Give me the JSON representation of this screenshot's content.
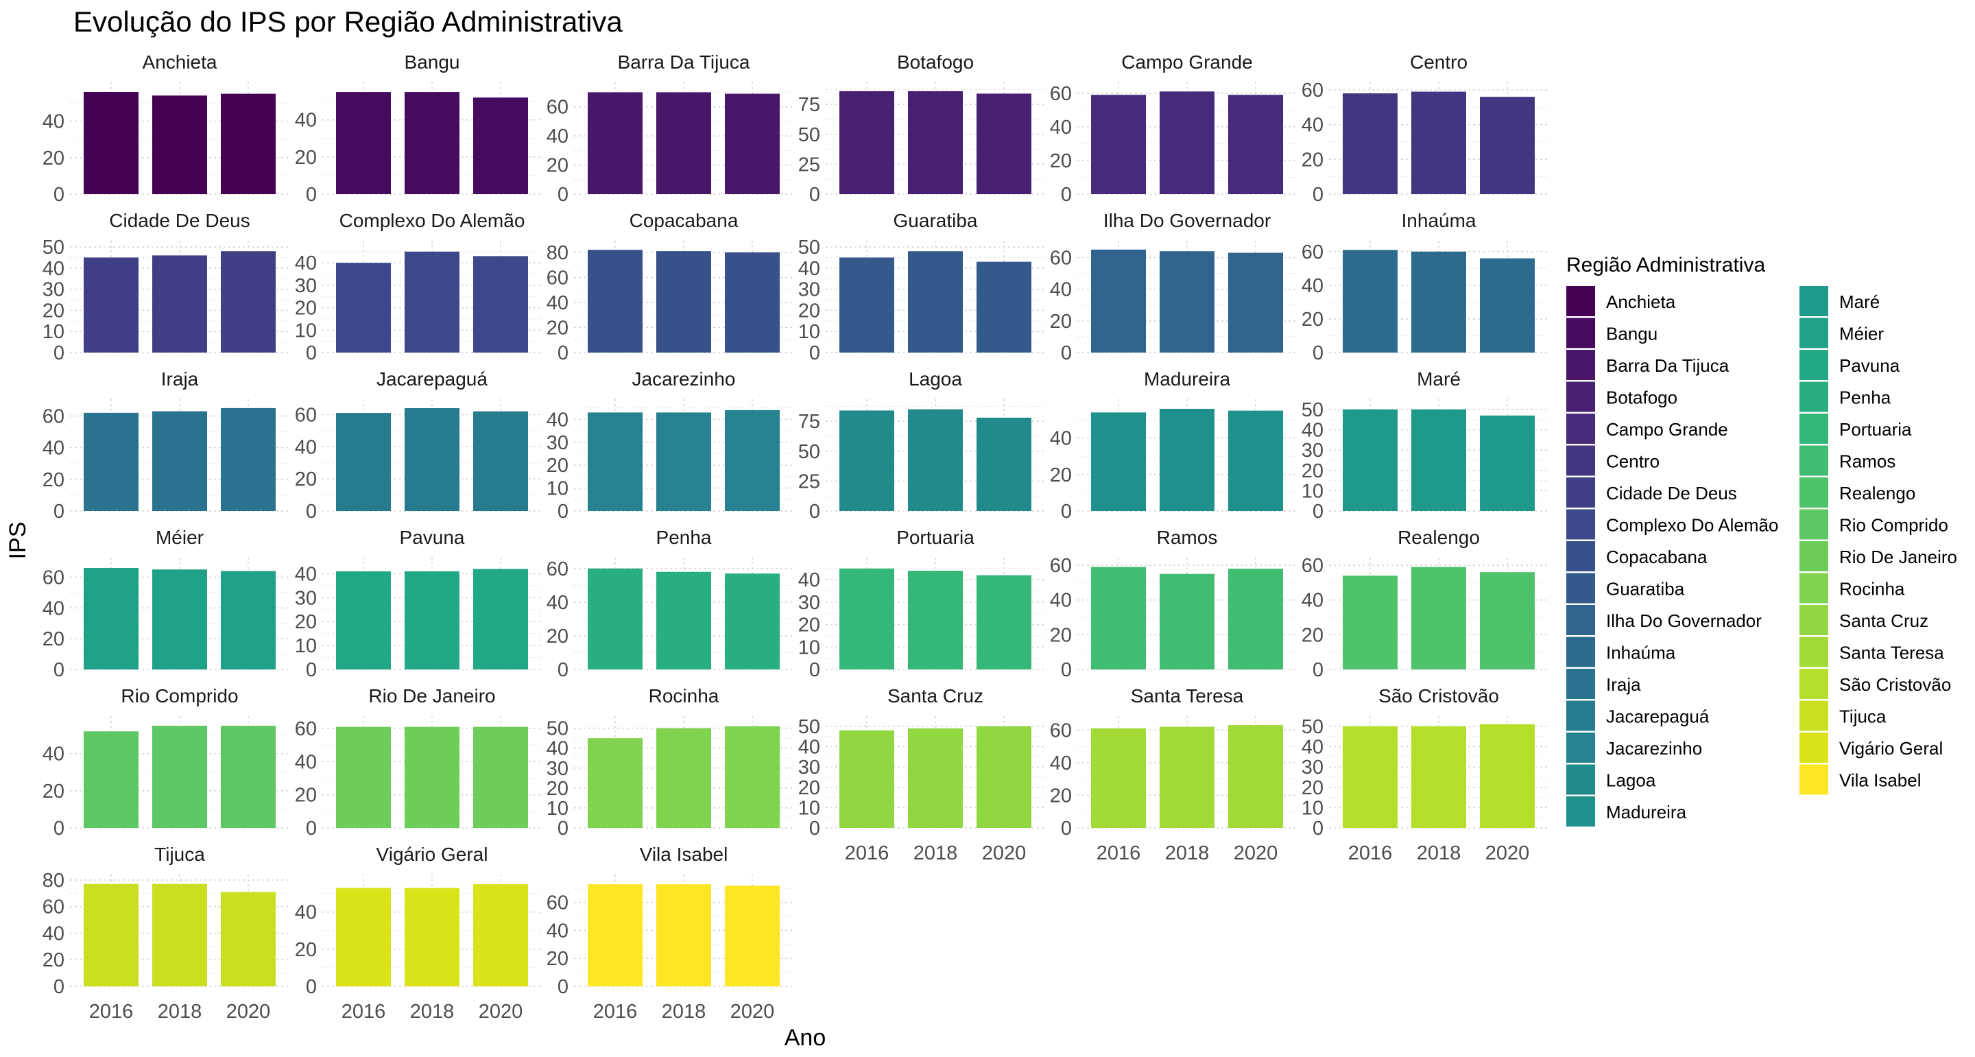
{
  "chart_data": {
    "type": "bar",
    "title": "Evolução do IPS por Região Administrativa",
    "xlabel": "Ano",
    "ylabel": "IPS",
    "categories": [
      "2016",
      "2018",
      "2020"
    ],
    "legend": {
      "title": "Região Administrativa",
      "placement": "right"
    },
    "grid": true,
    "panels": [
      {
        "name": "Anchieta",
        "values": [
          56,
          54,
          55
        ],
        "yticks": [
          0,
          20,
          40
        ],
        "ylim": [
          0,
          59
        ],
        "color": "#440154"
      },
      {
        "name": "Bangu",
        "values": [
          55,
          55,
          52
        ],
        "yticks": [
          0,
          20,
          40
        ],
        "ylim": [
          0,
          58
        ],
        "color": "#460B5E"
      },
      {
        "name": "Barra Da Tijuca",
        "values": [
          70,
          70,
          69
        ],
        "yticks": [
          0,
          20,
          40,
          60
        ],
        "ylim": [
          0,
          74
        ],
        "color": "#481769"
      },
      {
        "name": "Botafogo",
        "values": [
          86,
          86,
          84
        ],
        "yticks": [
          0,
          25,
          50,
          75
        ],
        "ylim": [
          0,
          90
        ],
        "color": "#472072"
      },
      {
        "name": "Campo Grande",
        "values": [
          59,
          61,
          59
        ],
        "yticks": [
          0,
          20,
          40,
          60
        ],
        "ylim": [
          0,
          64
        ],
        "color": "#462B7A"
      },
      {
        "name": "Centro",
        "values": [
          58,
          59,
          56
        ],
        "yticks": [
          0,
          20,
          40,
          60
        ],
        "ylim": [
          0,
          62
        ],
        "color": "#433580"
      },
      {
        "name": "Cidade De Deus",
        "values": [
          45,
          46,
          48
        ],
        "yticks": [
          0,
          10,
          20,
          30,
          40,
          50
        ],
        "ylim": [
          0,
          51
        ],
        "color": "#403E85"
      },
      {
        "name": "Complexo Do Alemão",
        "values": [
          40,
          45,
          43
        ],
        "yticks": [
          0,
          10,
          20,
          30,
          40
        ],
        "ylim": [
          0,
          48
        ],
        "color": "#3C4889"
      },
      {
        "name": "Copacabana",
        "values": [
          82,
          81,
          80
        ],
        "yticks": [
          0,
          20,
          40,
          60,
          80
        ],
        "ylim": [
          0,
          86
        ],
        "color": "#38518B"
      },
      {
        "name": "Guaratiba",
        "values": [
          45,
          48,
          43
        ],
        "yticks": [
          0,
          10,
          20,
          30,
          40,
          50
        ],
        "ylim": [
          0,
          51
        ],
        "color": "#345A8C"
      },
      {
        "name": "Ilha Do Governador",
        "values": [
          65,
          64,
          63
        ],
        "yticks": [
          0,
          20,
          40,
          60
        ],
        "ylim": [
          0,
          68
        ],
        "color": "#30638D"
      },
      {
        "name": "Inhaúma",
        "values": [
          61,
          60,
          56
        ],
        "yticks": [
          0,
          20,
          40,
          60
        ],
        "ylim": [
          0,
          64
        ],
        "color": "#2D6B8E"
      },
      {
        "name": "Iraja",
        "values": [
          62,
          63,
          65
        ],
        "yticks": [
          0,
          20,
          40,
          60
        ],
        "ylim": [
          0,
          68
        ],
        "color": "#2A738E"
      },
      {
        "name": "Jacarepaguá",
        "values": [
          61,
          64,
          62
        ],
        "yticks": [
          0,
          20,
          40,
          60
        ],
        "ylim": [
          0,
          67
        ],
        "color": "#277B8E"
      },
      {
        "name": "Jacarezinho",
        "values": [
          43,
          43,
          44
        ],
        "yticks": [
          0,
          10,
          20,
          30,
          40
        ],
        "ylim": [
          0,
          47
        ],
        "color": "#25828E"
      },
      {
        "name": "Lagoa",
        "values": [
          84,
          85,
          78
        ],
        "yticks": [
          0,
          25,
          50,
          75
        ],
        "ylim": [
          0,
          90
        ],
        "color": "#228A8D"
      },
      {
        "name": "Madureira",
        "values": [
          54,
          56,
          55
        ],
        "yticks": [
          0,
          20,
          40
        ],
        "ylim": [
          0,
          59
        ],
        "color": "#1F918C"
      },
      {
        "name": "Maré",
        "values": [
          50,
          50,
          47
        ],
        "yticks": [
          0,
          10,
          20,
          30,
          40,
          50
        ],
        "ylim": [
          0,
          53
        ],
        "color": "#1F998A"
      },
      {
        "name": "Méier",
        "values": [
          66,
          65,
          64
        ],
        "yticks": [
          0,
          20,
          40,
          60
        ],
        "ylim": [
          0,
          70
        ],
        "color": "#1FA188"
      },
      {
        "name": "Pavuna",
        "values": [
          41,
          41,
          42
        ],
        "yticks": [
          0,
          10,
          20,
          30,
          40
        ],
        "ylim": [
          0,
          45
        ],
        "color": "#22A884"
      },
      {
        "name": "Penha",
        "values": [
          60,
          58,
          57
        ],
        "yticks": [
          0,
          20,
          40,
          60
        ],
        "ylim": [
          0,
          64
        ],
        "color": "#29AF7F"
      },
      {
        "name": "Portuaria",
        "values": [
          45,
          44,
          42
        ],
        "yticks": [
          0,
          10,
          20,
          30,
          40
        ],
        "ylim": [
          0,
          48
        ],
        "color": "#35B779"
      },
      {
        "name": "Ramos",
        "values": [
          59,
          55,
          58
        ],
        "yticks": [
          0,
          20,
          40,
          60
        ],
        "ylim": [
          0,
          62
        ],
        "color": "#40BD72"
      },
      {
        "name": "Realengo",
        "values": [
          54,
          59,
          56
        ],
        "yticks": [
          0,
          20,
          40,
          60
        ],
        "ylim": [
          0,
          62
        ],
        "color": "#4EC36B"
      },
      {
        "name": "Rio Comprido",
        "values": [
          52,
          55,
          55
        ],
        "yticks": [
          0,
          20,
          40
        ],
        "ylim": [
          0,
          58
        ],
        "color": "#5DC863"
      },
      {
        "name": "Rio De Janeiro",
        "values": [
          61,
          61,
          61
        ],
        "yticks": [
          0,
          20,
          40,
          60
        ],
        "ylim": [
          0,
          65
        ],
        "color": "#6DCD59"
      },
      {
        "name": "Rocinha",
        "values": [
          45,
          50,
          51
        ],
        "yticks": [
          0,
          10,
          20,
          30,
          40,
          50
        ],
        "ylim": [
          0,
          54
        ],
        "color": "#7FD34E"
      },
      {
        "name": "Santa Cruz",
        "values": [
          48,
          49,
          50
        ],
        "yticks": [
          0,
          10,
          20,
          30,
          40,
          50
        ],
        "ylim": [
          0,
          53
        ],
        "color": "#91D742"
      },
      {
        "name": "Santa Teresa",
        "values": [
          61,
          62,
          63
        ],
        "yticks": [
          0,
          20,
          40,
          60
        ],
        "ylim": [
          0,
          66
        ],
        "color": "#A2DA37"
      },
      {
        "name": "São Cristovão",
        "values": [
          50,
          50,
          51
        ],
        "yticks": [
          0,
          10,
          20,
          30,
          40,
          50
        ],
        "ylim": [
          0,
          53
        ],
        "color": "#B5DE2B"
      },
      {
        "name": "Tijuca",
        "values": [
          77,
          77,
          71
        ],
        "yticks": [
          0,
          20,
          40,
          60,
          80
        ],
        "ylim": [
          0,
          81
        ],
        "color": "#C8E020"
      },
      {
        "name": "Vigário Geral",
        "values": [
          53,
          53,
          55
        ],
        "yticks": [
          0,
          20,
          40
        ],
        "ylim": [
          0,
          58
        ],
        "color": "#DAE319"
      },
      {
        "name": "Vila Isabel",
        "values": [
          73,
          73,
          72
        ],
        "yticks": [
          0,
          20,
          40,
          60
        ],
        "ylim": [
          0,
          77
        ],
        "color": "#FDE725"
      }
    ]
  }
}
